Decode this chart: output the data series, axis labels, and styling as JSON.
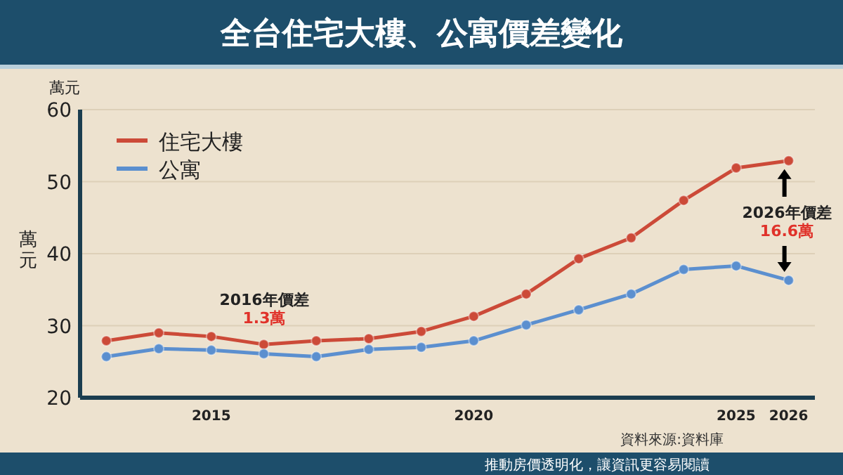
{
  "chart_data": {
    "type": "line",
    "title": "全台住宅大樓、公寓價差變化",
    "ylabel": "萬元",
    "x": [
      2013,
      2014,
      2015,
      2016,
      2017,
      2018,
      2019,
      2020,
      2021,
      2022,
      2023,
      2024,
      2025,
      2026
    ],
    "series": [
      {
        "name": "住宅大樓",
        "color": "#cc4a38",
        "values": [
          27.9,
          29.0,
          28.5,
          27.4,
          27.9,
          28.2,
          29.2,
          31.3,
          34.4,
          39.3,
          42.2,
          47.4,
          51.9,
          52.9
        ]
      },
      {
        "name": "公寓",
        "color": "#5b8fcf",
        "values": [
          25.7,
          26.8,
          26.6,
          26.1,
          25.7,
          26.7,
          27.0,
          27.9,
          30.1,
          32.2,
          34.4,
          37.8,
          38.3,
          36.3
        ]
      }
    ],
    "xlim": [
      2012.5,
      2026.5
    ],
    "xticks": [
      2015,
      2020,
      2025,
      2026
    ],
    "ylim": [
      20,
      60
    ],
    "yticks": [
      20,
      30,
      40,
      50,
      60
    ],
    "grid": "y",
    "legend": "top left",
    "marker": "circle",
    "line_style": "solid",
    "annotations": [
      "萬元",
      "2016年價差",
      "1.3萬",
      "2026年價差",
      "16.6萬",
      "資料來源:資料庫",
      "推動房價透明化，讓資訊更容易閱讀"
    ]
  }
}
